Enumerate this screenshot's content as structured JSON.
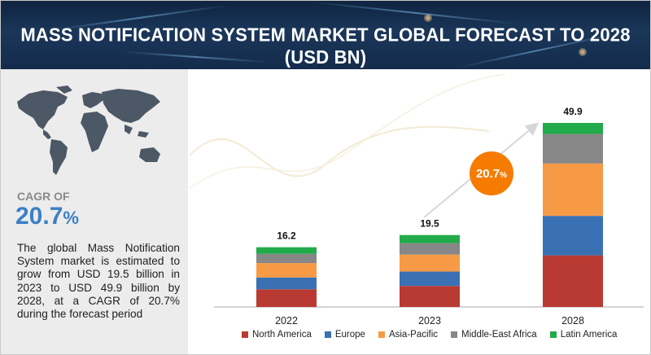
{
  "header": {
    "title": "MASS NOTIFICATION SYSTEM MARKET GLOBAL FORECAST TO 2028 (USD BN)"
  },
  "sidebar": {
    "cagr_label": "CAGR OF",
    "cagr_value": "20.7",
    "cagr_unit": "%",
    "description": "The global Mass Notification System market is estimated to grow from USD 19.5 billion in 2023 to USD 49.9 billion by 2028, at a CAGR of 20.7% during the forecast period",
    "map_icon": "world-map-icon"
  },
  "chart_data": {
    "type": "bar",
    "stacked": true,
    "title": "MASS NOTIFICATION SYSTEM MARKET GLOBAL FORECAST TO 2028 (USD BN)",
    "categories": [
      "2022",
      "2023",
      "2028"
    ],
    "totals": [
      16.2,
      19.5,
      49.9
    ],
    "total_labels": [
      "16.2",
      "19.5",
      "49.9"
    ],
    "series": [
      {
        "name": "North America",
        "color": "#b93a32",
        "values": [
          4.8,
          5.7,
          14.0
        ]
      },
      {
        "name": "Europe",
        "color": "#3a71b4",
        "values": [
          3.2,
          3.9,
          10.7
        ]
      },
      {
        "name": "Asia-Pacific",
        "color": "#f79a46",
        "values": [
          3.9,
          4.6,
          14.2
        ]
      },
      {
        "name": "Middle-East Africa",
        "color": "#878787",
        "values": [
          2.5,
          3.1,
          8.0
        ]
      },
      {
        "name": "Latin America",
        "color": "#22ab4b",
        "values": [
          1.8,
          2.2,
          3.0
        ]
      }
    ],
    "annotation": {
      "text": "20.7%",
      "color": "#f57c00"
    },
    "legend_position": "bottom",
    "grid": false
  }
}
